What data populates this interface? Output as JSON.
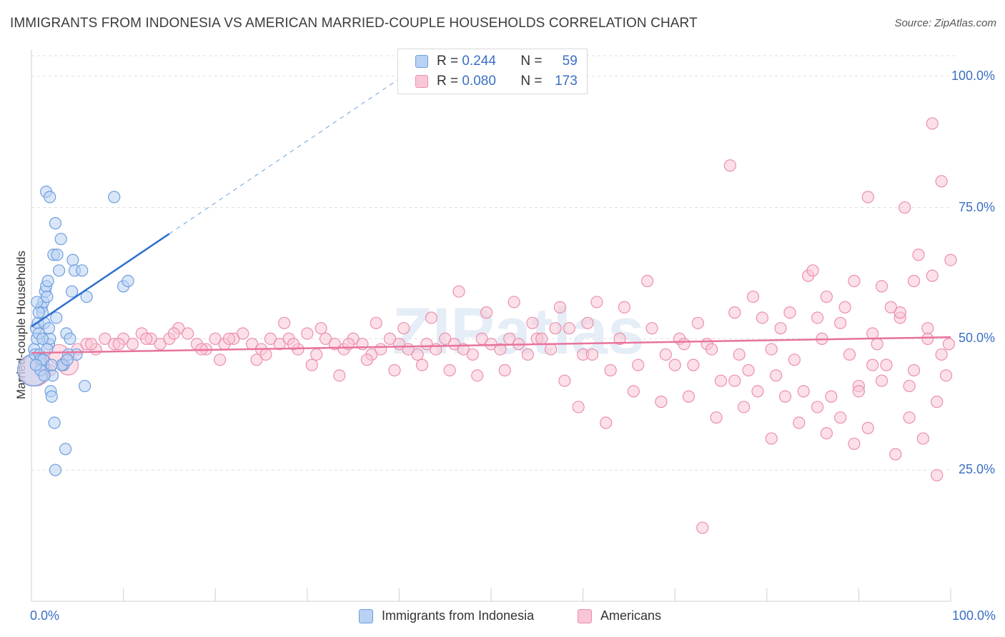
{
  "title": "IMMIGRANTS FROM INDONESIA VS AMERICAN MARRIED-COUPLE HOUSEHOLDS CORRELATION CHART",
  "source": "Source: ZipAtlas.com",
  "watermark": "ZIPatlas",
  "colors": {
    "blue_fill": "#b9d1f3",
    "blue_stroke": "#6e9fe0",
    "blue_line": "#2f6fcf",
    "pink_fill": "#f9c6d6",
    "pink_stroke": "#eb8fae",
    "pink_line": "#e8739c",
    "tick_text": "#3b6fc4",
    "grid": "#dddddd"
  },
  "stats": {
    "blue": {
      "r_label": "R =",
      "r_value": "0.244",
      "n_label": "N =",
      "n_value": "59"
    },
    "pink": {
      "r_label": "R =",
      "r_value": "0.080",
      "n_label": "N =",
      "n_value": "173"
    }
  },
  "chart_data": {
    "type": "scatter",
    "title": "IMMIGRANTS FROM INDONESIA VS AMERICAN MARRIED-COUPLE HOUSEHOLDS CORRELATION CHART",
    "xlabel": "",
    "ylabel": "Married-couple Households",
    "xlim": [
      0,
      100
    ],
    "ylim": [
      0,
      105
    ],
    "y_ticks": [
      {
        "value": 25,
        "label": "25.0%"
      },
      {
        "value": 50,
        "label": "50.0%"
      },
      {
        "value": 75,
        "label": "75.0%"
      },
      {
        "value": 100,
        "label": "100.0%"
      }
    ],
    "x_tick_labels": {
      "left": "0.0%",
      "right": "100.0%"
    },
    "legend_position": "bottom",
    "series": [
      {
        "name": "Immigrants from Indonesia",
        "color": "blue",
        "trend": {
          "x0": 0,
          "y0": 52.3,
          "x1": 15,
          "y1": 70.0,
          "dash_to_x": 40
        },
        "points": [
          [
            0.2,
            44,
            3
          ],
          [
            0.3,
            48,
            1
          ],
          [
            0.4,
            47,
            1
          ],
          [
            0.5,
            52,
            1
          ],
          [
            0.6,
            50,
            1
          ],
          [
            0.7,
            53,
            1
          ],
          [
            0.8,
            51,
            1
          ],
          [
            0.9,
            47,
            1
          ],
          [
            1.0,
            46,
            1
          ],
          [
            1.1,
            56,
            1
          ],
          [
            1.2,
            55,
            1
          ],
          [
            1.3,
            57,
            1
          ],
          [
            1.4,
            53,
            1
          ],
          [
            1.5,
            59,
            1
          ],
          [
            1.6,
            60,
            1
          ],
          [
            1.7,
            58,
            1
          ],
          [
            1.8,
            61,
            1
          ],
          [
            1.9,
            49,
            1
          ],
          [
            2.0,
            50,
            1
          ],
          [
            2.1,
            40,
            1
          ],
          [
            2.2,
            39,
            1
          ],
          [
            2.3,
            43,
            1
          ],
          [
            2.5,
            34,
            1
          ],
          [
            2.6,
            25,
            1
          ],
          [
            1.6,
            78,
            1
          ],
          [
            2.0,
            77,
            1
          ],
          [
            2.4,
            66,
            1
          ],
          [
            2.6,
            72,
            1
          ],
          [
            2.8,
            66,
            1
          ],
          [
            3.0,
            63,
            1
          ],
          [
            3.2,
            69,
            1
          ],
          [
            3.5,
            45,
            1
          ],
          [
            3.7,
            29,
            1
          ],
          [
            3.8,
            51,
            1
          ],
          [
            4.2,
            50,
            1
          ],
          [
            4.4,
            59,
            1
          ],
          [
            4.5,
            65,
            1
          ],
          [
            4.7,
            63,
            1
          ],
          [
            4.9,
            47,
            1
          ],
          [
            5.5,
            63,
            1
          ],
          [
            5.8,
            41,
            1
          ],
          [
            6.0,
            58,
            1
          ],
          [
            9.0,
            77,
            1
          ],
          [
            10.0,
            60,
            1
          ],
          [
            10.5,
            61,
            1
          ],
          [
            1.0,
            44,
            1
          ],
          [
            1.3,
            46,
            1
          ],
          [
            1.7,
            48,
            1
          ],
          [
            0.8,
            55,
            1
          ],
          [
            0.6,
            57,
            1
          ],
          [
            1.9,
            52,
            1
          ],
          [
            2.7,
            54,
            1
          ],
          [
            3.3,
            45,
            1
          ],
          [
            4.0,
            47,
            1
          ],
          [
            0.5,
            45,
            1
          ],
          [
            1.2,
            50,
            1
          ],
          [
            2.2,
            45,
            1
          ],
          [
            3.9,
            46,
            1
          ],
          [
            1.4,
            43,
            1
          ]
        ]
      },
      {
        "name": "Americans",
        "color": "pink",
        "trend": {
          "x0": 0,
          "y0": 47.3,
          "x1": 100,
          "y1": 50.3
        },
        "points": [
          [
            0.4,
            44,
            3
          ],
          [
            1.2,
            46,
            1
          ],
          [
            2.0,
            44,
            1
          ],
          [
            3.0,
            47,
            2
          ],
          [
            4.0,
            45,
            2
          ],
          [
            5.0,
            48,
            1
          ],
          [
            6.0,
            49,
            1
          ],
          [
            7.0,
            48,
            1
          ],
          [
            8.0,
            50,
            1
          ],
          [
            9.0,
            49,
            1
          ],
          [
            10.0,
            50,
            1
          ],
          [
            11.0,
            49,
            1
          ],
          [
            12.0,
            51,
            1
          ],
          [
            13.0,
            50,
            1
          ],
          [
            14.0,
            49,
            1
          ],
          [
            15.0,
            50,
            1
          ],
          [
            16.0,
            52,
            1
          ],
          [
            17.0,
            51,
            1
          ],
          [
            18.0,
            49,
            1
          ],
          [
            19.0,
            48,
            1
          ],
          [
            20.0,
            50,
            1
          ],
          [
            21.0,
            49,
            1
          ],
          [
            22.0,
            50,
            1
          ],
          [
            23.0,
            51,
            1
          ],
          [
            24.0,
            49,
            1
          ],
          [
            25.0,
            48,
            1
          ],
          [
            26.0,
            50,
            1
          ],
          [
            27.0,
            49,
            1
          ],
          [
            28.0,
            50,
            1
          ],
          [
            29.0,
            48,
            1
          ],
          [
            30.0,
            51,
            1
          ],
          [
            31.0,
            47,
            1
          ],
          [
            32.0,
            50,
            1
          ],
          [
            33.0,
            49,
            1
          ],
          [
            34.0,
            48,
            1
          ],
          [
            35.0,
            50,
            1
          ],
          [
            36.0,
            49,
            1
          ],
          [
            37.0,
            47,
            1
          ],
          [
            38.0,
            48,
            1
          ],
          [
            39.0,
            50,
            1
          ],
          [
            40.0,
            49,
            1
          ],
          [
            41.0,
            48,
            1
          ],
          [
            42.0,
            47,
            1
          ],
          [
            43.0,
            49,
            1
          ],
          [
            44.0,
            48,
            1
          ],
          [
            45.0,
            50,
            1
          ],
          [
            46.0,
            49,
            1
          ],
          [
            47.0,
            48,
            1
          ],
          [
            48.0,
            47,
            1
          ],
          [
            49.0,
            50,
            1
          ],
          [
            50.0,
            49,
            1
          ],
          [
            51.0,
            48,
            1
          ],
          [
            52.0,
            50,
            1
          ],
          [
            53.0,
            49,
            1
          ],
          [
            54.0,
            47,
            1
          ],
          [
            55.0,
            50,
            1
          ],
          [
            3.5,
            45,
            1
          ],
          [
            6.5,
            49,
            1
          ],
          [
            9.5,
            49,
            1
          ],
          [
            12.5,
            50,
            1
          ],
          [
            15.5,
            51,
            1
          ],
          [
            18.5,
            48,
            1
          ],
          [
            21.5,
            50,
            1
          ],
          [
            24.5,
            46,
            1
          ],
          [
            27.5,
            53,
            1
          ],
          [
            30.5,
            45,
            1
          ],
          [
            33.5,
            43,
            1
          ],
          [
            36.5,
            46,
            1
          ],
          [
            39.5,
            44,
            1
          ],
          [
            42.5,
            45,
            1
          ],
          [
            45.5,
            44,
            1
          ],
          [
            48.5,
            43,
            1
          ],
          [
            51.5,
            44,
            1
          ],
          [
            54.5,
            53,
            1
          ],
          [
            57.5,
            56,
            1
          ],
          [
            60.5,
            53,
            1
          ],
          [
            20.5,
            46,
            1
          ],
          [
            25.5,
            47,
            1
          ],
          [
            28.5,
            49,
            1
          ],
          [
            31.5,
            52,
            1
          ],
          [
            34.5,
            49,
            1
          ],
          [
            37.5,
            53,
            1
          ],
          [
            40.5,
            52,
            1
          ],
          [
            43.5,
            54,
            1
          ],
          [
            46.5,
            59,
            1
          ],
          [
            49.5,
            55,
            1
          ],
          [
            52.5,
            57,
            1
          ],
          [
            55.5,
            50,
            1
          ],
          [
            58.5,
            52,
            1
          ],
          [
            61.5,
            57,
            1
          ],
          [
            64.5,
            56,
            1
          ],
          [
            67.5,
            52,
            1
          ],
          [
            70.5,
            50,
            1
          ],
          [
            73.5,
            49,
            1
          ],
          [
            76.5,
            55,
            1
          ],
          [
            79.5,
            54,
            1
          ],
          [
            82.5,
            55,
            1
          ],
          [
            85.5,
            54,
            1
          ],
          [
            88.5,
            56,
            1
          ],
          [
            91.5,
            51,
            1
          ],
          [
            94.5,
            54,
            1
          ],
          [
            97.5,
            52,
            1
          ],
          [
            56.5,
            48,
            1
          ],
          [
            59.5,
            37,
            1
          ],
          [
            62.5,
            34,
            1
          ],
          [
            65.5,
            40,
            1
          ],
          [
            68.5,
            38,
            1
          ],
          [
            71.5,
            39,
            1
          ],
          [
            74.5,
            35,
            1
          ],
          [
            77.5,
            37,
            1
          ],
          [
            80.5,
            31,
            1
          ],
          [
            83.5,
            34,
            1
          ],
          [
            86.5,
            32,
            1
          ],
          [
            89.5,
            30,
            1
          ],
          [
            92.5,
            42,
            1
          ],
          [
            95.5,
            41,
            1
          ],
          [
            98.5,
            38,
            1
          ],
          [
            57.0,
            52,
            1
          ],
          [
            60.0,
            47,
            1
          ],
          [
            63.0,
            44,
            1
          ],
          [
            66.0,
            45,
            1
          ],
          [
            69.0,
            47,
            1
          ],
          [
            72.0,
            45,
            1
          ],
          [
            75.0,
            42,
            1
          ],
          [
            78.0,
            44,
            1
          ],
          [
            81.0,
            43,
            1
          ],
          [
            84.0,
            40,
            1
          ],
          [
            87.0,
            39,
            1
          ],
          [
            90.0,
            41,
            1
          ],
          [
            93.0,
            45,
            1
          ],
          [
            96.0,
            44,
            1
          ],
          [
            99.0,
            47,
            1
          ],
          [
            67.0,
            61,
            1
          ],
          [
            72.5,
            53,
            1
          ],
          [
            78.5,
            58,
            1
          ],
          [
            84.5,
            62,
            1
          ],
          [
            89.5,
            61,
            1
          ],
          [
            94.5,
            55,
            1
          ],
          [
            100.0,
            65,
            1
          ],
          [
            96.5,
            66,
            1
          ],
          [
            97.5,
            50,
            1
          ],
          [
            95.0,
            75,
            1
          ],
          [
            91.0,
            77,
            1
          ],
          [
            76.0,
            83,
            1
          ],
          [
            98.0,
            91,
            1
          ],
          [
            85.0,
            63,
            1
          ],
          [
            86.5,
            58,
            1
          ],
          [
            88.0,
            53,
            1
          ],
          [
            93.5,
            56,
            1
          ],
          [
            71.0,
            49,
            1
          ],
          [
            74.0,
            48,
            1
          ],
          [
            76.5,
            42,
            1
          ],
          [
            79.0,
            40,
            1
          ],
          [
            82.0,
            39,
            1
          ],
          [
            85.5,
            37,
            1
          ],
          [
            88.0,
            35,
            1
          ],
          [
            91.0,
            33,
            1
          ],
          [
            94.0,
            28,
            1
          ],
          [
            95.5,
            35,
            1
          ],
          [
            97.0,
            31,
            1
          ],
          [
            98.5,
            24,
            1
          ],
          [
            99.5,
            43,
            1
          ],
          [
            90.0,
            40,
            1
          ],
          [
            73.0,
            14,
            1
          ],
          [
            80.5,
            48,
            1
          ],
          [
            83.0,
            46,
            1
          ],
          [
            86.0,
            50,
            1
          ],
          [
            89.0,
            47,
            1
          ],
          [
            92.0,
            49,
            1
          ],
          [
            70.0,
            45,
            1
          ],
          [
            64.0,
            50,
            1
          ],
          [
            61.0,
            47,
            1
          ],
          [
            58.0,
            42,
            1
          ],
          [
            77.0,
            47,
            1
          ],
          [
            81.5,
            52,
            1
          ],
          [
            99.0,
            80,
            1
          ],
          [
            99.8,
            49,
            1
          ],
          [
            92.5,
            60,
            1
          ],
          [
            96.0,
            61,
            1
          ],
          [
            98.0,
            62,
            1
          ],
          [
            91.5,
            45,
            1
          ]
        ]
      }
    ]
  },
  "legend": {
    "blue": "Immigrants from Indonesia",
    "pink": "Americans"
  }
}
